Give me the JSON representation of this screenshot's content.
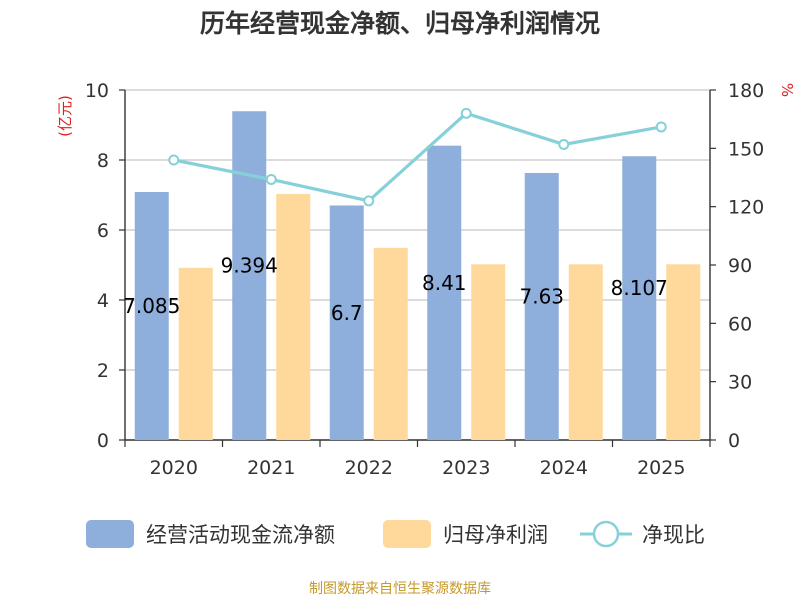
{
  "chart_data": {
    "type": "bar",
    "title": "历年经营现金净额、归母净利润情况",
    "categories": [
      "2020",
      "2021",
      "2022",
      "2023",
      "2024",
      "2025"
    ],
    "series": [
      {
        "name": "经营活动现金流净额",
        "type": "bar",
        "axis": "left",
        "values": [
          7.085,
          9.394,
          6.7,
          8.41,
          7.63,
          8.107
        ],
        "labels": [
          "7.085",
          "9.394",
          "6.7",
          "8.41",
          "7.63",
          "8.107"
        ],
        "color": "#8eaedb"
      },
      {
        "name": "归母净利润",
        "type": "bar",
        "axis": "left",
        "values": [
          4.92,
          7.03,
          5.49,
          5.02,
          5.02,
          5.02
        ],
        "color": "#ffd99b"
      },
      {
        "name": "净现比",
        "type": "line",
        "axis": "right",
        "values": [
          144,
          134,
          123,
          168,
          152,
          161
        ],
        "color": "#86d1d9"
      }
    ],
    "y_left": {
      "label": "(亿元)",
      "min": 0,
      "max": 10,
      "ticks": [
        "0",
        "2",
        "4",
        "6",
        "8",
        "10"
      ]
    },
    "y_right": {
      "label": "%",
      "min": 0,
      "max": 180,
      "ticks": [
        "0",
        "30",
        "60",
        "90",
        "120",
        "150",
        "180"
      ]
    },
    "grid": true,
    "legend": "bottom"
  },
  "footer": "制图数据来自恒生聚源数据库"
}
